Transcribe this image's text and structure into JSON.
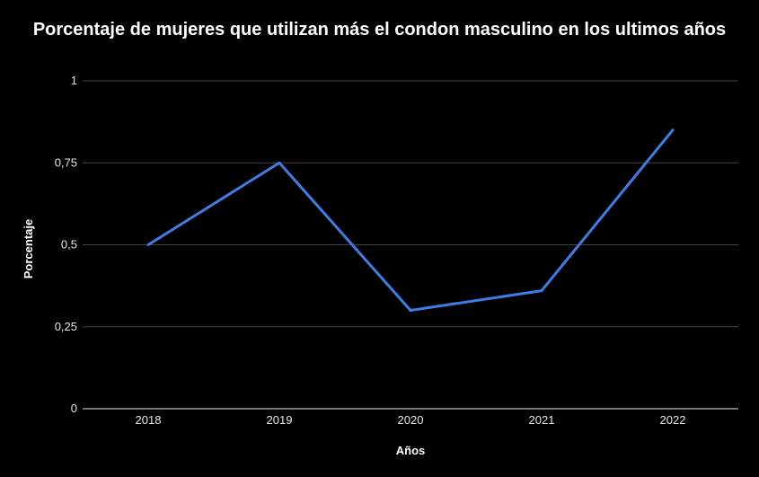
{
  "chart_data": {
    "type": "line",
    "title": "Porcentaje de mujeres que utilizan más el condon masculino en los ultimos años",
    "xlabel": "Años",
    "ylabel": "Porcentaje",
    "categories": [
      "2018",
      "2019",
      "2020",
      "2021",
      "2022"
    ],
    "series": [
      {
        "values": [
          0.5,
          0.75,
          0.3,
          0.36,
          0.85
        ],
        "color": "#3d7ee6"
      }
    ],
    "ylim": [
      0,
      1
    ],
    "yticks": [
      {
        "value": 0,
        "label": "0"
      },
      {
        "value": 0.25,
        "label": "0,25"
      },
      {
        "value": 0.5,
        "label": "0,5"
      },
      {
        "value": 0.75,
        "label": "0,75"
      },
      {
        "value": 1,
        "label": "1"
      }
    ],
    "grid": true,
    "background": "#000000",
    "gridline_color": "#444444"
  }
}
